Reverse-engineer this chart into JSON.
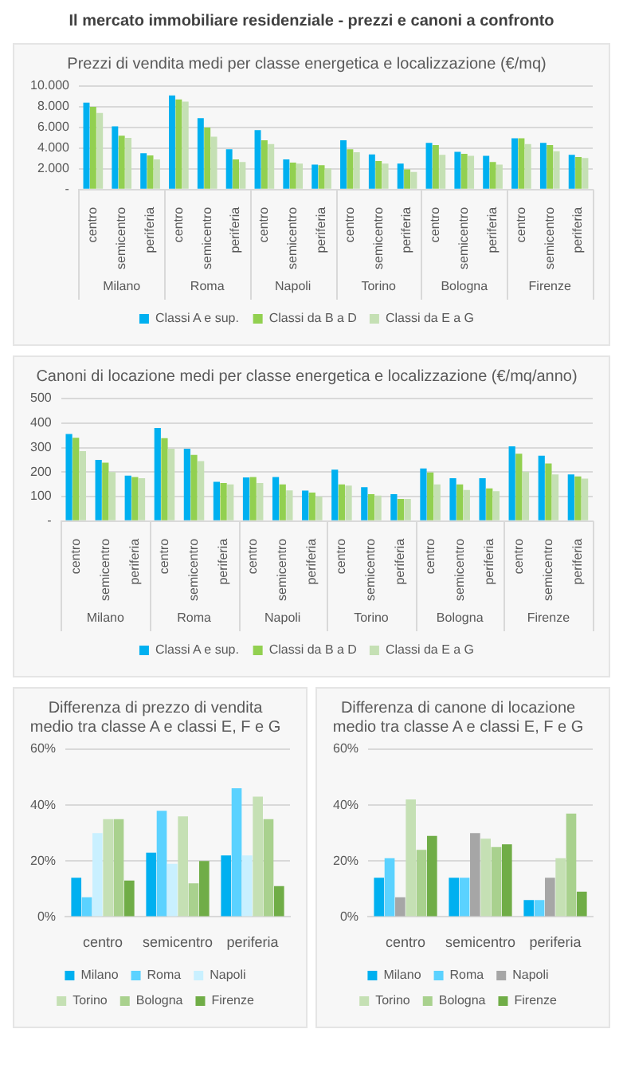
{
  "chart_data": [
    {
      "type": "bar",
      "title": "Il mercato immobiliare residenziale - prezzi e canoni a confronto",
      "subtitle": "Prezzi di vendita medi per classe energetica e localizzazione (€/mq)",
      "categories": [
        "centro",
        "semicentro",
        "periferia",
        "centro",
        "semicentro",
        "periferia",
        "centro",
        "semicentro",
        "periferia",
        "centro",
        "semicentro",
        "periferia",
        "centro",
        "semicentro",
        "periferia",
        "centro",
        "semicentro",
        "periferia"
      ],
      "annotations": [
        "Milano",
        "Roma",
        "Napoli",
        "Torino",
        "Bologna",
        "Firenze"
      ],
      "series": [
        {
          "name": "Classi A e sup.",
          "color": "#00b0f0",
          "values": [
            8400,
            6100,
            3500,
            9100,
            6900,
            3900,
            5750,
            2900,
            2400,
            4750,
            3400,
            2500,
            4500,
            3650,
            3250,
            4950,
            4500,
            3350
          ]
        },
        {
          "name": "Classi da B a D",
          "color": "#92d050",
          "values": [
            8000,
            5200,
            3300,
            8700,
            6000,
            2900,
            4750,
            2600,
            2350,
            3900,
            2750,
            1950,
            4300,
            3450,
            2650,
            4950,
            4300,
            3150
          ]
        },
        {
          "name": "Classi da E a G",
          "color": "#c5e0b4",
          "values": [
            7400,
            5000,
            2900,
            8500,
            5100,
            2650,
            4400,
            2500,
            2050,
            3600,
            2500,
            1700,
            3350,
            3250,
            2400,
            4400,
            3700,
            3050
          ]
        }
      ],
      "ylim": [
        0,
        10000
      ],
      "yticks": [
        {
          "value": 0,
          "label": "-"
        },
        {
          "value": 2000,
          "label": "2.000"
        },
        {
          "value": 4000,
          "label": "4.000"
        },
        {
          "value": 6000,
          "label": "6.000"
        },
        {
          "value": 8000,
          "label": "8.000"
        },
        {
          "value": 10000,
          "label": "10.000"
        }
      ],
      "grid": "y",
      "legend": "bottom"
    },
    {
      "type": "bar",
      "title": "Canoni di locazione medi per classe energetica e localizzazione (€/mq/anno)",
      "categories": [
        "centro",
        "semicentro",
        "periferia",
        "centro",
        "semicentro",
        "periferia",
        "centro",
        "semicentro",
        "periferia",
        "centro",
        "semicentro",
        "periferia",
        "centro",
        "semicentro",
        "periferia",
        "centro",
        "semicentro",
        "periferia"
      ],
      "annotations": [
        "Milano",
        "Roma",
        "Napoli",
        "Torino",
        "Bologna",
        "Firenze"
      ],
      "series": [
        {
          "name": "Classi A e sup.",
          "color": "#00b0f0",
          "values": [
            355,
            250,
            185,
            380,
            295,
            160,
            178,
            180,
            124,
            210,
            138,
            110,
            215,
            175,
            175,
            305,
            267,
            190
          ]
        },
        {
          "name": "Classi da B a D",
          "color": "#92d050",
          "values": [
            340,
            238,
            180,
            338,
            270,
            155,
            180,
            150,
            116,
            150,
            110,
            90,
            198,
            150,
            133,
            275,
            235,
            182
          ]
        },
        {
          "name": "Classi da E a G",
          "color": "#c5e0b4",
          "values": [
            285,
            200,
            175,
            295,
            245,
            150,
            155,
            125,
            100,
            145,
            104,
            90,
            150,
            127,
            122,
            202,
            190,
            173
          ]
        }
      ],
      "ylim": [
        0,
        500
      ],
      "yticks": [
        {
          "value": 0,
          "label": "-"
        },
        100,
        200,
        300,
        400,
        500
      ],
      "grid": "y",
      "legend": "bottom"
    },
    {
      "type": "bar",
      "title": "Differenza di prezzo di vendita medio tra classe A e classi E, F e G",
      "categories": [
        "centro",
        "semicentro",
        "periferia"
      ],
      "series": [
        {
          "name": "Milano",
          "color": "#00b0f0",
          "values": [
            14,
            23,
            22
          ]
        },
        {
          "name": "Roma",
          "color": "#5bd2ff",
          "values": [
            7,
            38,
            46
          ]
        },
        {
          "name": "Napoli",
          "color": "#c9f0ff",
          "values": [
            30,
            19,
            22
          ]
        },
        {
          "name": "Torino",
          "color": "#c5e0b4",
          "values": [
            35,
            36,
            43
          ]
        },
        {
          "name": "Bologna",
          "color": "#a9d18e",
          "values": [
            35,
            12,
            35
          ]
        },
        {
          "name": "Firenze",
          "color": "#70ad47",
          "values": [
            13,
            20,
            11
          ]
        }
      ],
      "ylim": [
        0,
        60
      ],
      "yticks": [
        {
          "value": 0,
          "label": "0%"
        },
        {
          "value": 20,
          "label": "20%"
        },
        {
          "value": 40,
          "label": "40%"
        },
        {
          "value": 60,
          "label": "60%"
        }
      ],
      "grid": "y",
      "legend": "bottom"
    },
    {
      "type": "bar",
      "title": "Differenza di canone di locazione medio tra classe A e classi E, F e G",
      "categories": [
        "centro",
        "semicentro",
        "periferia"
      ],
      "series": [
        {
          "name": "Milano",
          "color": "#00b0f0",
          "values": [
            14,
            14,
            6
          ]
        },
        {
          "name": "Roma",
          "color": "#5bd2ff",
          "values": [
            21,
            14,
            6
          ]
        },
        {
          "name": "Napoli",
          "color": "#a6a6a6",
          "values": [
            7,
            30,
            14
          ]
        },
        {
          "name": "Torino",
          "color": "#c5e0b4",
          "values": [
            42,
            28,
            21
          ]
        },
        {
          "name": "Bologna",
          "color": "#a9d18e",
          "values": [
            24,
            25,
            37
          ]
        },
        {
          "name": "Firenze",
          "color": "#70ad47",
          "values": [
            29,
            26,
            9
          ]
        }
      ],
      "ylim": [
        0,
        60
      ],
      "yticks": [
        {
          "value": 0,
          "label": "0%"
        },
        {
          "value": 20,
          "label": "20%"
        },
        {
          "value": 40,
          "label": "40%"
        },
        {
          "value": 60,
          "label": "60%"
        }
      ],
      "grid": "y",
      "legend": "bottom"
    }
  ]
}
